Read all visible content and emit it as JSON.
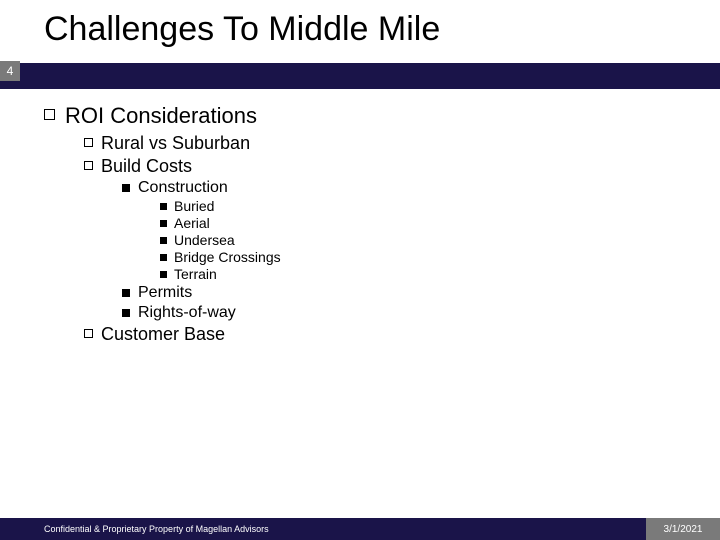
{
  "title": "Challenges To Middle Mile",
  "page_number": "4",
  "colors": {
    "accent_bar": "#1a1449",
    "page_box": "#7a7a7a",
    "footer_left_bg": "#1a1449",
    "footer_right_bg": "#7a7a7a",
    "text": "#000000",
    "footer_text": "#ffffff"
  },
  "content": {
    "lvl1": "ROI Considerations",
    "lvl2_1": "Rural vs Suburban",
    "lvl2_2": "Build Costs",
    "lvl3_1": "Construction",
    "lvl4_1": "Buried",
    "lvl4_2": "Aerial",
    "lvl4_3": "Undersea",
    "lvl4_4": "Bridge Crossings",
    "lvl4_5": "Terrain",
    "lvl3_2": "Permits",
    "lvl3_3": "Rights-of-way",
    "lvl2_3": "Customer Base"
  },
  "footer": {
    "confidential": "Confidential & Proprietary Property of Magellan Advisors",
    "date": "3/1/2021"
  }
}
